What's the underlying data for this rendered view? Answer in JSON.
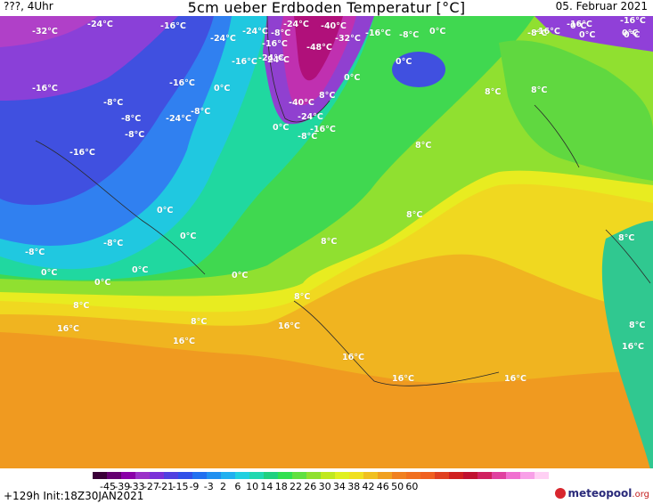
{
  "header": {
    "left": "???, 4Uhr",
    "title": "5cm ueber Erdboden Temperatur [°C]",
    "date": "05. Februar 2021"
  },
  "map": {
    "labels": [
      "-32°C",
      "-24°C",
      "-16°C",
      "-24°C",
      "-24°C",
      "-8°C",
      "-24°C",
      "-16°C",
      "-8°C",
      "0°C",
      "-16°C",
      "-24°C",
      "0°C",
      "-16°C",
      "-24°C",
      "-48°C",
      "-32°C",
      "-40°C",
      "-8°C",
      "0°C",
      "0°C",
      "-16°C",
      "-16°C",
      "-16°C",
      "0°C",
      "0°C",
      "-16°C",
      "-8°C",
      "-24°C",
      "0°C",
      "-40°C",
      "-24°C",
      "0°C",
      "-8°C",
      "-16°C",
      "8°C",
      "0°C",
      "-16°C",
      "-8°C",
      "-8°C",
      "8°C",
      "8°C",
      "8°C",
      "8°C",
      "8°C",
      "-8°C",
      "-16°C",
      "0°C",
      "-8°C",
      "0°C",
      "0°C",
      "-8°C",
      "0°C",
      "0°C",
      "0°C",
      "8°C",
      "8°C",
      "8°C",
      "8°C",
      "8°C",
      "16°C",
      "16°C",
      "16°C",
      "16°C",
      "16°C",
      "16°C",
      "16°C"
    ]
  },
  "legend": {
    "ticks": [
      "-45",
      "-39",
      "-33",
      "-27",
      "-21",
      "-15",
      "-9",
      "-3",
      "2",
      "6",
      "10",
      "14",
      "18",
      "22",
      "26",
      "30",
      "34",
      "38",
      "42",
      "46",
      "50",
      "60"
    ],
    "colors": [
      "#3a0038",
      "#640070",
      "#8a00a8",
      "#9a30c8",
      "#7a30d8",
      "#5040e0",
      "#3050e8",
      "#2070f0",
      "#2090f0",
      "#20b0f0",
      "#20d0e0",
      "#20d8b0",
      "#20d080",
      "#30e050",
      "#60e040",
      "#90e030",
      "#c0e820",
      "#e0f020",
      "#f0e020",
      "#f0c020",
      "#f0a020",
      "#f08020",
      "#f07020",
      "#f06020",
      "#e04020",
      "#d02020",
      "#c01030",
      "#d02060",
      "#e040a0",
      "#f070d0",
      "#f8a0e8",
      "#ffd0f4"
    ],
    "init": "+129h  Init:18Z30JAN2021",
    "brand_meteo": "meteopool",
    "brand_org": ".org"
  }
}
